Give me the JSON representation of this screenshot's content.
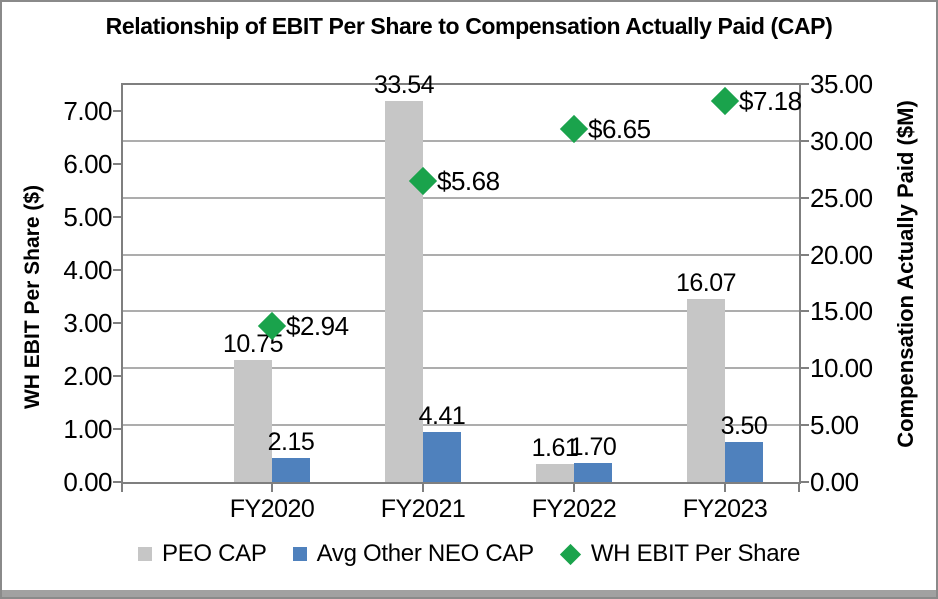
{
  "title": "Relationship of EBIT Per Share to Compensation Actually Paid (CAP)",
  "chart_data": {
    "type": "combo",
    "categories": [
      "FY2020",
      "FY2021",
      "FY2022",
      "FY2023"
    ],
    "series": [
      {
        "name": "PEO CAP",
        "type": "bar",
        "axis": "right",
        "marker": "square",
        "color": "#c6c6c6",
        "values": [
          10.75,
          33.54,
          1.61,
          16.07
        ],
        "data_labels": [
          "10.75",
          "33.54",
          "1.61",
          "16.07"
        ]
      },
      {
        "name": "Avg Other NEO CAP",
        "type": "bar",
        "axis": "right",
        "marker": "square",
        "color": "#4f81bd",
        "values": [
          2.15,
          4.41,
          1.7,
          3.5
        ],
        "data_labels": [
          "2.15",
          "4.41",
          "1.70",
          "3.50"
        ]
      },
      {
        "name": "WH EBIT Per Share",
        "type": "scatter",
        "axis": "left",
        "marker": "diamond",
        "color": "#1aa34c",
        "values": [
          2.94,
          5.68,
          6.65,
          7.18
        ],
        "data_labels": [
          "$2.94",
          "$5.68",
          "$6.65",
          "$7.18"
        ]
      }
    ],
    "left_axis": {
      "title": "WH EBIT Per Share ($)",
      "min": 0,
      "max": 7.5,
      "tick_step": 1,
      "tick_labels": [
        "0.00",
        "1.00",
        "2.00",
        "3.00",
        "4.00",
        "5.00",
        "6.00",
        "7.00"
      ]
    },
    "right_axis": {
      "title": "Compensation Actually Paid ($M)",
      "min": 0,
      "max": 35,
      "tick_step": 5,
      "tick_labels": [
        "0.00",
        "5.00",
        "10.00",
        "15.00",
        "20.00",
        "25.00",
        "30.00",
        "35.00"
      ]
    },
    "grid": true,
    "legend_position": "bottom"
  }
}
